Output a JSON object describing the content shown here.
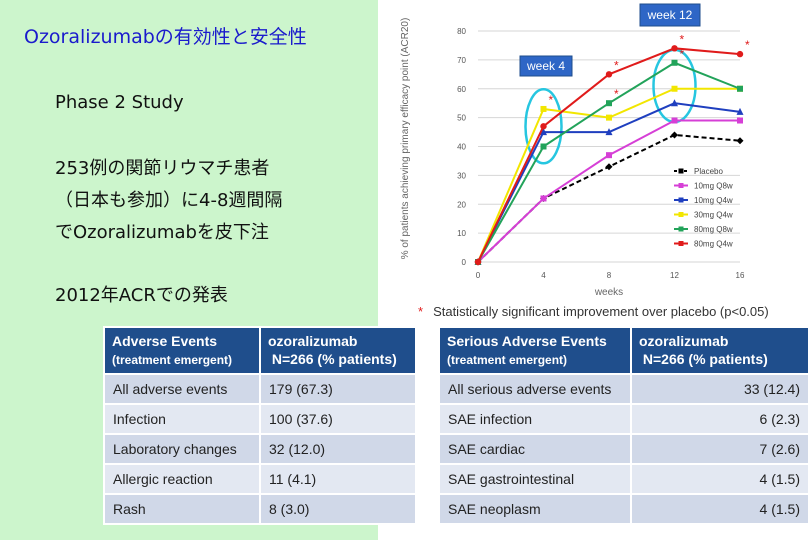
{
  "slide": {
    "title": "Ozoralizumabの有効性と安全性",
    "lines": [
      "Phase 2 Study",
      "253例の関節リウマチ患者",
      "（日本も参加）に4-8週間隔",
      "でOzoralizumabを皮下注",
      "2012年ACRでの発表"
    ]
  },
  "chart_data": {
    "type": "line",
    "title": "",
    "xlabel": "weeks",
    "ylabel": "% of patients achieving primary efficacy point (ACR20)",
    "x": [
      0,
      4,
      8,
      12,
      16
    ],
    "xlim": [
      0,
      16
    ],
    "ylim": [
      0,
      80
    ],
    "yticks": [
      0,
      10,
      20,
      30,
      40,
      50,
      60,
      70,
      80
    ],
    "grid": true,
    "legend_position": "bottom-right",
    "series": [
      {
        "name": "Placebo",
        "values": [
          0,
          22,
          33,
          44,
          42
        ],
        "color": "#000000",
        "dashed": true,
        "marker": "diamond"
      },
      {
        "name": "10mg Q8w",
        "values": [
          0,
          22,
          37,
          49,
          49
        ],
        "color": "#d63fd6",
        "marker": "square"
      },
      {
        "name": "10mg Q4w",
        "values": [
          0,
          45,
          45,
          55,
          52
        ],
        "color": "#1f3fbf",
        "marker": "triangle"
      },
      {
        "name": "30mg Q4w",
        "values": [
          0,
          53,
          50,
          60,
          60
        ],
        "color": "#f2e600",
        "marker": "square"
      },
      {
        "name": "80mg Q8w",
        "values": [
          0,
          40,
          55,
          69,
          60
        ],
        "color": "#22a35a",
        "marker": "square"
      },
      {
        "name": "80mg Q4w",
        "values": [
          0,
          47,
          65,
          74,
          72
        ],
        "color": "#e01b1b",
        "marker": "circle"
      }
    ],
    "annotations": [
      {
        "label": "week 4",
        "x": 4
      },
      {
        "label": "week 12",
        "x": 12
      }
    ],
    "significance_marks": [
      {
        "x": 4,
        "y": 53
      },
      {
        "x": 8,
        "y": 65
      },
      {
        "x": 8,
        "y": 55
      },
      {
        "x": 12,
        "y": 74
      },
      {
        "x": 12,
        "y": 69
      },
      {
        "x": 16,
        "y": 72
      }
    ],
    "significance_symbol": "*",
    "footnote": "Statistically significant improvement over placebo (p<0.05)"
  },
  "tables": {
    "adverse": {
      "header_main": "Adverse Events",
      "header_sub": "(treatment emergent)",
      "col2_line1": "ozoralizumab",
      "col2_line2": "N=266 (% patients)",
      "rows": [
        [
          "All adverse events",
          "179 (67.3)"
        ],
        [
          "Infection",
          "100 (37.6)"
        ],
        [
          "Laboratory changes",
          "32 (12.0)"
        ],
        [
          "Allergic reaction",
          "11 (4.1)"
        ],
        [
          "Rash",
          "8 (3.0)"
        ]
      ]
    },
    "serious": {
      "header_main": "Serious Adverse Events",
      "header_sub": "(treatment emergent)",
      "col2_line1": "ozoralizumab",
      "col2_line2": "N=266 (% patients)",
      "rows": [
        [
          "All serious adverse events",
          "33 (12.4)"
        ],
        [
          "SAE infection",
          "6 (2.3)"
        ],
        [
          "SAE cardiac",
          "7 (2.6)"
        ],
        [
          "SAE gastrointestinal",
          "4 (1.5)"
        ],
        [
          "SAE neoplasm",
          "4 (1.5)"
        ]
      ]
    }
  }
}
